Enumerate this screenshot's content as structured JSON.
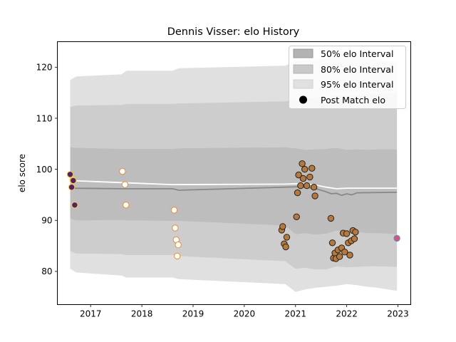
{
  "chart_data": {
    "type": "line",
    "title": "Dennis Visser: elo History",
    "ylabel": "elo score",
    "xlabel": "",
    "xlim": [
      2016.35,
      2023.25
    ],
    "ylim": [
      73.5,
      125
    ],
    "xticks": [
      2017,
      2018,
      2019,
      2020,
      2021,
      2022,
      2023
    ],
    "xtick_labels": [
      "2017",
      "2018",
      "2019",
      "2020",
      "2021",
      "2022",
      "2023"
    ],
    "yticks": [
      80,
      90,
      100,
      110,
      120
    ],
    "ytick_labels": [
      "80",
      "90",
      "100",
      "110",
      "120"
    ],
    "grid": false,
    "legend_position": "top-right",
    "legend": [
      {
        "label": "50% elo Interval",
        "kind": "patch",
        "color": "#b3b3b3"
      },
      {
        "label": "80% elo Interval",
        "kind": "patch",
        "color": "#c9c9c9"
      },
      {
        "label": "95% elo Interval",
        "kind": "patch",
        "color": "#e0e0e0"
      },
      {
        "label": "Post Match elo",
        "kind": "marker",
        "color": "#000000"
      }
    ],
    "bands": {
      "x": [
        2016.6,
        2016.72,
        2017.6,
        2017.7,
        2018.6,
        2018.72,
        2020.8,
        2021.0,
        2021.2,
        2021.4,
        2021.6,
        2021.8,
        2022.0,
        2022.2,
        2022.4,
        2022.6,
        2022.98
      ],
      "p95_hi": [
        117.5,
        118.2,
        118.6,
        119.3,
        119.3,
        119.8,
        120.3,
        121.2,
        121.5,
        121.5,
        121.8,
        122.2,
        122.2,
        122.0,
        122.0,
        121.5,
        121.0
      ],
      "p95_lo": [
        80.5,
        79.8,
        79.2,
        78.8,
        78.8,
        78.5,
        77.5,
        76.0,
        76.5,
        76.8,
        77.0,
        77.2,
        77.5,
        77.3,
        77.0,
        76.8,
        76.2
      ],
      "p80_hi": [
        112.2,
        112.5,
        112.6,
        112.8,
        112.8,
        112.9,
        113.3,
        113.5,
        113.7,
        114.0,
        114.2,
        114.5,
        114.5,
        114.5,
        114.7,
        114.8,
        115.0
      ],
      "p80_lo": [
        84.0,
        83.5,
        83.4,
        83.2,
        83.2,
        83.0,
        82.0,
        80.5,
        80.7,
        80.4,
        80.4,
        81.0,
        80.8,
        80.9,
        81.0,
        81.0,
        80.9
      ],
      "p50_hi": [
        104.3,
        104.2,
        104.0,
        104.0,
        104.0,
        104.1,
        104.3,
        104.1,
        103.8,
        103.9,
        104.0,
        104.2,
        103.8,
        103.9,
        103.8,
        103.9,
        103.9
      ],
      "p50_lo": [
        90.3,
        90.0,
        90.1,
        90.0,
        89.9,
        89.9,
        89.0,
        87.3,
        87.5,
        87.2,
        87.4,
        88.0,
        87.8,
        87.8,
        87.5,
        87.5,
        87.3
      ]
    },
    "series": [
      {
        "name": "",
        "color": "#ffffff",
        "x": [
          2016.6,
          2017.6,
          2018.6,
          2020.8,
          2021.1,
          2021.4,
          2021.6,
          2021.8,
          2022.0,
          2022.3,
          2022.98
        ],
        "y": [
          97.8,
          97.4,
          97.0,
          97.1,
          97.2,
          96.9,
          96.5,
          96.2,
          96.3,
          96.3,
          96.3
        ]
      },
      {
        "name": "",
        "color": "#888888",
        "x": [
          2016.6,
          2017.6,
          2018.6,
          2018.72,
          2020.8,
          2021.1,
          2021.4,
          2021.6,
          2021.7,
          2021.8,
          2021.9,
          2022.0,
          2022.1,
          2022.2,
          2022.98
        ],
        "y": [
          96.3,
          96.2,
          96.2,
          95.9,
          96.5,
          96.6,
          96.2,
          95.6,
          95.2,
          95.3,
          94.9,
          95.2,
          95.0,
          95.4,
          95.5
        ]
      }
    ],
    "point_groups": [
      {
        "fill": "#5a1e6e",
        "edge": "#f2d33a",
        "x": [
          2016.6,
          2016.63,
          2016.65,
          2016.66,
          2016.69
        ],
        "y": [
          99.0,
          96.5,
          97.9,
          97.8,
          93.0
        ]
      },
      {
        "fill": "#ffffff",
        "edge": "#f08c28",
        "x": [
          2017.62,
          2017.67,
          2017.69,
          2018.63,
          2018.65,
          2018.67,
          2018.69,
          2018.71
        ],
        "y": [
          99.6,
          97.0,
          93.0,
          92.0,
          88.5,
          86.2,
          83.0,
          85.2
        ]
      },
      {
        "fill": "#b87838",
        "edge": "#222222",
        "x": [
          2020.73,
          2020.75,
          2020.78,
          2020.81,
          2020.83,
          2021.02,
          2021.04,
          2021.06,
          2021.1,
          2021.13,
          2021.15,
          2021.18,
          2021.22,
          2021.28,
          2021.32,
          2021.36,
          2021.38,
          2021.69,
          2021.72,
          2021.74,
          2021.77,
          2021.79,
          2021.83,
          2021.86,
          2021.9,
          2021.93,
          2021.96,
          2022.0,
          2022.03,
          2022.06,
          2022.09,
          2022.12,
          2022.15
        ],
        "y": [
          88.1,
          88.8,
          85.4,
          84.8,
          86.7,
          90.7,
          95.4,
          98.9,
          96.8,
          101.1,
          98.2,
          100.0,
          96.8,
          98.5,
          100.2,
          96.5,
          94.8,
          90.4,
          85.6,
          82.6,
          83.6,
          82.5,
          84.2,
          82.9,
          84.6,
          87.5,
          83.8,
          87.4,
          85.6,
          83.2,
          86.0,
          88.0,
          86.4
        ]
      },
      {
        "fill": "#b87838",
        "edge": "#222222",
        "x": [
          2022.17
        ],
        "y": [
          87.7
        ]
      },
      {
        "fill": "#e0507a",
        "edge": "#3aa0c8",
        "x": [
          2022.98
        ],
        "y": [
          86.5
        ]
      }
    ]
  }
}
